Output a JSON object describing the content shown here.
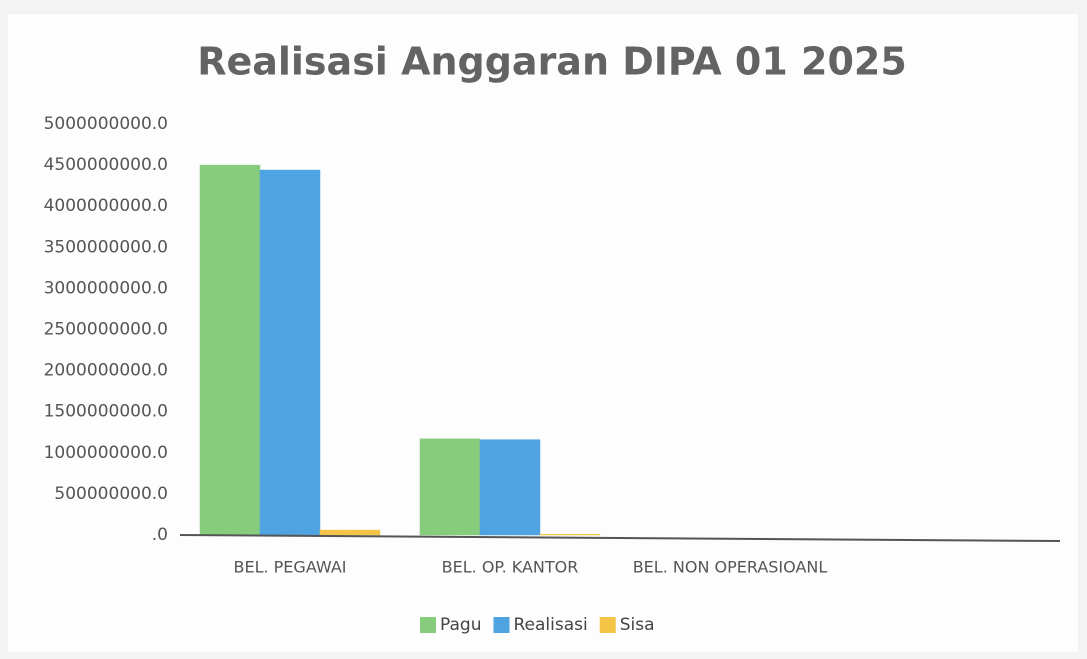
{
  "chart_data": {
    "type": "bar",
    "title": "Realisasi Anggaran DIPA 01 2025",
    "categories": [
      "BEL. PEGAWAI",
      "BEL. OP. KANTOR",
      "BEL. NON OPERASIOANL",
      null
    ],
    "series": [
      {
        "name": "Pagu",
        "color": "#86cc7c",
        "values": [
          4500000000,
          1170000000,
          0,
          null
        ]
      },
      {
        "name": "Realisasi",
        "color": "#4fa3e0",
        "values": [
          4440000000,
          1160000000,
          0,
          null
        ]
      },
      {
        "name": "Sisa",
        "color": "#f4c446",
        "values": [
          60000000,
          10000000,
          0,
          null
        ]
      }
    ],
    "ylim": [
      0,
      5000000000
    ],
    "yticks": [
      {
        "value": 0,
        "label": ".0"
      },
      {
        "value": 500000000,
        "label": "500000000.0"
      },
      {
        "value": 1000000000,
        "label": "1000000000.0"
      },
      {
        "value": 1500000000,
        "label": "1500000000.0"
      },
      {
        "value": 2000000000,
        "label": "2000000000.0"
      },
      {
        "value": 2500000000,
        "label": "2500000000.0"
      },
      {
        "value": 3000000000,
        "label": "3000000000.0"
      },
      {
        "value": 3500000000,
        "label": "3500000000.0"
      },
      {
        "value": 4000000000,
        "label": "4000000000.0"
      },
      {
        "value": 4500000000,
        "label": "4500000000.0"
      },
      {
        "value": 5000000000,
        "label": "5000000000.0"
      }
    ],
    "grid": false,
    "legend": "bottom"
  }
}
